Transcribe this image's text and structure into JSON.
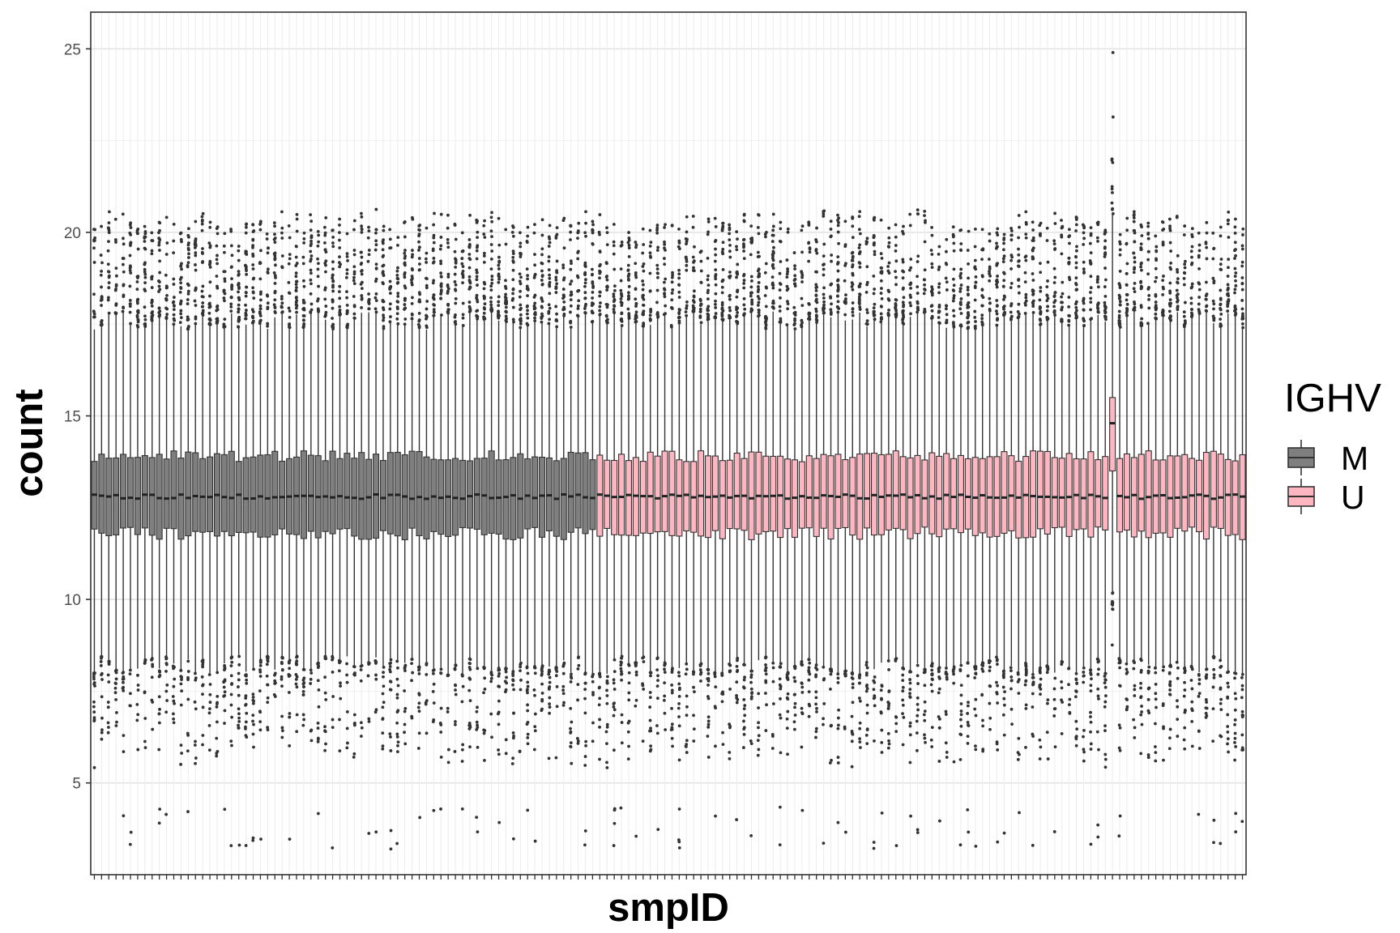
{
  "chart_data": {
    "type": "box",
    "xlabel": "smpID",
    "ylabel": "count",
    "ylim": [
      2.5,
      26
    ],
    "yticks": [
      5,
      10,
      15,
      20,
      25
    ],
    "x_tick_labels_shown": false,
    "grid": true,
    "legend": {
      "title": "IGHV",
      "position": "right",
      "entries": [
        {
          "label": "M",
          "color": "#7f7f7f"
        },
        {
          "label": "U",
          "color": "#ffb6c1"
        }
      ]
    },
    "groups": [
      {
        "name": "M",
        "sample_count": 70,
        "color": "#7f7f7f",
        "approx_box_stats": {
          "whisker_low": 8.2,
          "q1": 11.8,
          "median": 12.8,
          "q3": 13.9,
          "whisker_high": 17.6
        }
      },
      {
        "name": "U",
        "sample_count": 90,
        "color": "#ffb6c1",
        "approx_box_stats": {
          "whisker_low": 8.2,
          "q1": 11.8,
          "median": 12.8,
          "q3": 13.9,
          "whisker_high": 17.6
        }
      }
    ],
    "notable_sample": {
      "group": "U",
      "position": 141,
      "q1": 13.5,
      "median": 14.8,
      "q3": 15.5,
      "whisker_low": 10.2,
      "whisker_high": 20.5,
      "outlier_max": 24.9
    },
    "outlier_range": {
      "low": 3.2,
      "high": 24.9
    }
  }
}
